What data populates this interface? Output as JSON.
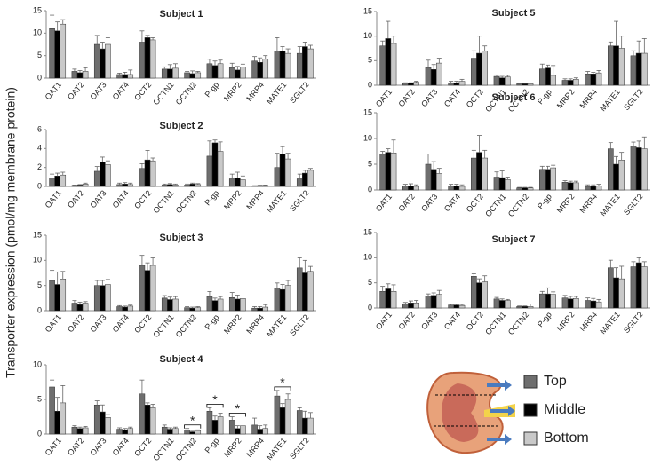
{
  "y_axis_label": "Transporter expression (pmol/mg membrane protein)",
  "legend": [
    {
      "name": "Top",
      "color": "#6e6e6e"
    },
    {
      "name": "Middle",
      "color": "#000000"
    },
    {
      "name": "Bottom",
      "color": "#c9c9c9"
    }
  ],
  "chart_data": [
    {
      "type": "bar",
      "title": "Subject 1",
      "categories": [
        "OAT1",
        "OAT2",
        "OAT3",
        "OAT4",
        "OCT2",
        "OCTN1",
        "OCTN2",
        "P-gp",
        "MRP2",
        "MRP4",
        "MATE1",
        "SGLT2"
      ],
      "ylim": [
        0,
        15
      ],
      "yticks": [
        0,
        5,
        10,
        15
      ],
      "series": [
        {
          "values": [
            11,
            1.5,
            7.5,
            0.8,
            8,
            2,
            1.2,
            3.2,
            2.3,
            3.8,
            6,
            5.5
          ],
          "errors": [
            3,
            0.5,
            2,
            0.3,
            2.5,
            0.5,
            0.3,
            1,
            1,
            1,
            3,
            1.5
          ]
        },
        {
          "values": [
            10.5,
            1.2,
            6.5,
            0.8,
            9,
            2,
            1,
            2.8,
            1.8,
            3.5,
            6,
            7
          ],
          "errors": [
            2,
            0.5,
            1.5,
            0.5,
            0.5,
            1,
            0.6,
            1,
            0.8,
            1,
            1,
            1
          ]
        },
        {
          "values": [
            12,
            1.5,
            7.5,
            0.8,
            8.5,
            2.2,
            1.2,
            3.2,
            2.5,
            4.2,
            5.5,
            6.5
          ],
          "errors": [
            1,
            0.8,
            1.5,
            1,
            0.5,
            1,
            0.3,
            0.8,
            0.6,
            0.8,
            1,
            0.8
          ]
        }
      ]
    },
    {
      "type": "bar",
      "title": "Subject 2",
      "categories": [
        "OAT1",
        "OAT2",
        "OAT3",
        "OAT4",
        "OCT2",
        "OCTN1",
        "OCTN2",
        "P-gp",
        "MRP2",
        "MRP4",
        "MATE1",
        "SGLT2"
      ],
      "ylim": [
        0,
        6
      ],
      "yticks": [
        0,
        2,
        4,
        6
      ],
      "series": [
        {
          "values": [
            0.9,
            0.1,
            1.6,
            0.2,
            1.9,
            0.15,
            0.15,
            3.2,
            0.8,
            0.05,
            2,
            0.8
          ],
          "errors": [
            0.4,
            0.05,
            0.5,
            0.15,
            0.5,
            0.1,
            0.1,
            1.6,
            0.5,
            0.03,
            1.5,
            0.5
          ]
        },
        {
          "values": [
            1.1,
            0.15,
            2.6,
            0.25,
            2.8,
            0.2,
            0.25,
            4.6,
            0.9,
            0.1,
            3.4,
            1.4
          ],
          "errors": [
            0.3,
            0.05,
            0.5,
            0.15,
            1,
            0.1,
            0.1,
            0.3,
            0.6,
            0.03,
            0.8,
            0.3
          ]
        },
        {
          "values": [
            1.2,
            0.25,
            2.3,
            0.2,
            2.7,
            0.15,
            0.2,
            3.7,
            0.7,
            0.1,
            2.9,
            1.7
          ],
          "errors": [
            0.3,
            0.1,
            0.4,
            0.15,
            0.3,
            0.1,
            0.1,
            1,
            0.4,
            0.05,
            0.6,
            0.2
          ]
        }
      ]
    },
    {
      "type": "bar",
      "title": "Subject 3",
      "categories": [
        "OAT1",
        "OAT2",
        "OAT3",
        "OAT4",
        "OCT2",
        "OCTN1",
        "OCTN2",
        "P-gp",
        "MRP2",
        "MRP4",
        "MATE1",
        "SGLT2"
      ],
      "ylim": [
        0,
        15
      ],
      "yticks": [
        0,
        5,
        10,
        15
      ],
      "series": [
        {
          "values": [
            6,
            1.5,
            5,
            0.8,
            9,
            2.5,
            0.6,
            2.8,
            2.6,
            0.5,
            4.5,
            8.5
          ],
          "errors": [
            2,
            0.5,
            1,
            0.2,
            2,
            0.5,
            0.2,
            1,
            1,
            0.3,
            1,
            2
          ]
        },
        {
          "values": [
            5.2,
            1.2,
            5,
            0.7,
            8,
            2.2,
            0.5,
            2,
            2.3,
            0.5,
            4.2,
            7.5
          ],
          "errors": [
            2.5,
            0.5,
            1,
            0.2,
            1.5,
            0.5,
            0.2,
            0.5,
            0.8,
            0.3,
            1,
            2.5
          ]
        },
        {
          "values": [
            6.3,
            1.5,
            5.2,
            0.9,
            9,
            2.3,
            0.6,
            2.3,
            2.4,
            0.7,
            5,
            7.8
          ],
          "errors": [
            1.5,
            0.3,
            1,
            0.2,
            1.5,
            0.5,
            0.2,
            0.5,
            0.5,
            0.5,
            1,
            1
          ]
        }
      ]
    },
    {
      "type": "bar",
      "title": "Subject 4",
      "categories": [
        "OAT1",
        "OAT2",
        "OAT3",
        "OAT4",
        "OCT2",
        "OCTN1",
        "OCTN2",
        "P-gp",
        "MRP2",
        "MRP4",
        "MATE1",
        "SGLT2"
      ],
      "ylim": [
        0,
        10
      ],
      "yticks": [
        0,
        5,
        10
      ],
      "annotations": [
        {
          "text": "*",
          "x": "OCTN2"
        },
        {
          "text": "*",
          "x": "P-gp"
        },
        {
          "text": "*",
          "x": "MRP2"
        },
        {
          "text": "*",
          "x": "MATE1"
        }
      ],
      "series": [
        {
          "values": [
            6.8,
            1,
            4.2,
            0.7,
            5.8,
            1,
            0.6,
            3.3,
            2,
            1.3,
            5.5,
            3.4
          ],
          "errors": [
            1,
            0.2,
            0.6,
            0.2,
            2,
            0.3,
            0.2,
            0.5,
            0.5,
            1,
            0.8,
            0.4
          ]
        },
        {
          "values": [
            3.3,
            0.8,
            3.2,
            0.6,
            4.2,
            0.7,
            0.3,
            2,
            0.8,
            0.7,
            3.8,
            2.3
          ],
          "errors": [
            2,
            0.2,
            1,
            0.2,
            0.3,
            0.2,
            0.1,
            0.6,
            0.4,
            0.5,
            0.6,
            1
          ]
        },
        {
          "values": [
            4.5,
            0.9,
            2.4,
            0.8,
            3.8,
            0.8,
            0.5,
            2.5,
            1.2,
            0.8,
            5,
            2.3
          ],
          "errors": [
            2.5,
            0.2,
            0.4,
            0.2,
            0.5,
            0.2,
            0.1,
            0.5,
            0.4,
            0.5,
            0.8,
            0.8
          ]
        }
      ]
    },
    {
      "type": "bar",
      "title": "Subject 5",
      "categories": [
        "OAT1",
        "OAT2",
        "OAT3",
        "OAT4",
        "OCT2",
        "OCTN1",
        "OCTN2",
        "P-gp",
        "MRP2",
        "MRP4",
        "MATE1",
        "SGLT2"
      ],
      "ylim": [
        0,
        15
      ],
      "yticks": [
        0,
        5,
        10,
        15
      ],
      "series": [
        {
          "values": [
            8,
            0.4,
            3.6,
            0.5,
            5.5,
            1.8,
            0.3,
            3.3,
            1,
            2.3,
            8,
            6
          ],
          "errors": [
            1,
            0.1,
            1.5,
            0.3,
            1.5,
            0.3,
            0.1,
            1,
            0.3,
            0.5,
            0.8,
            1
          ]
        },
        {
          "values": [
            9.5,
            0.4,
            3.2,
            0.5,
            6.5,
            1.5,
            0.3,
            3.5,
            1,
            2.3,
            8,
            6.5
          ],
          "errors": [
            3.5,
            0.1,
            1,
            0.3,
            3.5,
            0.3,
            0.1,
            0.6,
            0.3,
            0.3,
            5,
            2.5
          ]
        },
        {
          "values": [
            8.5,
            0.6,
            4.5,
            0.8,
            7,
            1.7,
            0.3,
            2,
            1.2,
            2.5,
            7.5,
            6.5
          ],
          "errors": [
            1.5,
            0.2,
            1,
            0.4,
            1,
            0.3,
            0.1,
            2,
            0.3,
            0.5,
            2.5,
            3
          ]
        }
      ]
    },
    {
      "type": "bar",
      "title": "Subject 6",
      "categories": [
        "OAT1",
        "OAT2",
        "OAT3",
        "OAT4",
        "OCT2",
        "OCTN1",
        "OCTN2",
        "P-gp",
        "MRP2",
        "MRP4",
        "MATE1",
        "SGLT2"
      ],
      "ylim": [
        0,
        15
      ],
      "yticks": [
        0,
        5,
        10,
        15
      ],
      "series": [
        {
          "values": [
            7,
            0.8,
            5,
            0.8,
            6.2,
            2.5,
            0.4,
            4,
            1.5,
            0.7,
            8,
            8.5
          ],
          "errors": [
            0.5,
            0.3,
            2,
            0.3,
            1.5,
            1,
            0.1,
            0.6,
            0.3,
            0.3,
            1.2,
            0.8
          ]
        },
        {
          "values": [
            7.3,
            0.8,
            4,
            0.8,
            7.3,
            2.4,
            0.4,
            4,
            1.4,
            0.7,
            5,
            8.2
          ],
          "errors": [
            0.7,
            0.4,
            1.5,
            0.3,
            3.3,
            1.3,
            0.1,
            0.6,
            0.3,
            0.3,
            1.5,
            1.3
          ]
        },
        {
          "values": [
            7.2,
            0.7,
            3.2,
            0.7,
            6.2,
            2,
            0.4,
            4.3,
            1.4,
            0.8,
            5.8,
            8
          ],
          "errors": [
            2.5,
            0.3,
            1,
            0.3,
            1.5,
            0.5,
            0.1,
            0.5,
            0.3,
            0.3,
            1.5,
            2.3
          ]
        }
      ]
    },
    {
      "type": "bar",
      "title": "Subject 7",
      "categories": [
        "OAT1",
        "OAT2",
        "OAT3",
        "OAT4",
        "OCT2",
        "OCTN1",
        "OCTN2",
        "P-gp",
        "MRP2",
        "MRP4",
        "MATE1",
        "SGLT2"
      ],
      "ylim": [
        0,
        15
      ],
      "yticks": [
        0,
        5,
        10,
        15
      ],
      "series": [
        {
          "values": [
            3.3,
            0.8,
            2.4,
            0.6,
            6.3,
            1.8,
            0.3,
            2.8,
            2,
            1.5,
            8,
            8.2
          ],
          "errors": [
            1,
            0.3,
            0.4,
            0.2,
            0.5,
            0.3,
            0.1,
            0.5,
            0.5,
            0.5,
            1.5,
            1
          ]
        },
        {
          "values": [
            3.8,
            1,
            2.5,
            0.6,
            5,
            1.5,
            0.3,
            2.8,
            1.8,
            1.4,
            6,
            9
          ],
          "errors": [
            1,
            0.4,
            0.5,
            0.2,
            0.8,
            0.3,
            0.1,
            1.2,
            0.5,
            0.5,
            2,
            1
          ]
        },
        {
          "values": [
            3.3,
            1,
            2.7,
            0.5,
            5.2,
            1.5,
            0.3,
            2.7,
            1.9,
            1.2,
            5.8,
            8.2
          ],
          "errors": [
            1.3,
            0.5,
            0.8,
            0.2,
            1.2,
            0.2,
            0.5,
            0.5,
            0.4,
            0.5,
            2.5,
            1
          ]
        }
      ]
    }
  ]
}
